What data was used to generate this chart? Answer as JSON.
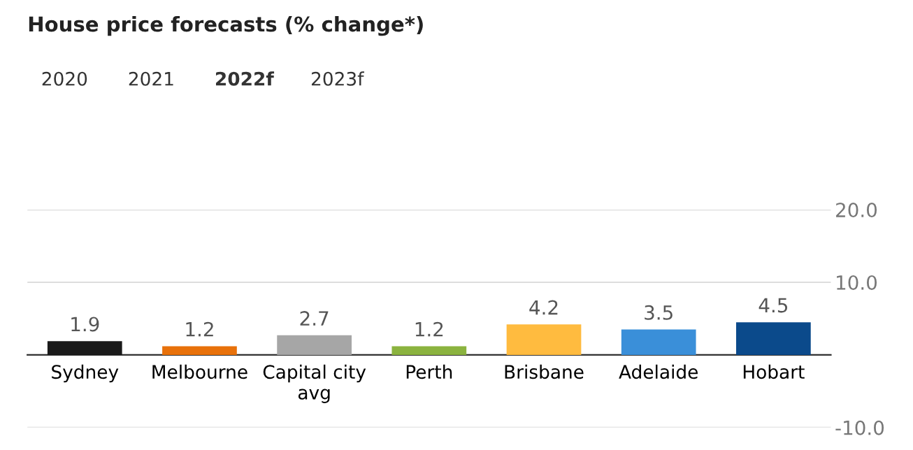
{
  "chart_data": {
    "type": "bar",
    "title": "House price forecasts (% change*)",
    "annotations": [
      "2020",
      "2021",
      "2022f",
      "2023f"
    ],
    "categories": [
      "Sydney",
      "Melbourne",
      "Capital city avg",
      "Perth",
      "Brisbane",
      "Adelaide",
      "Hobart"
    ],
    "values": [
      1.9,
      1.2,
      2.7,
      1.2,
      4.2,
      3.5,
      4.5
    ],
    "colors": [
      "#1a1a1a",
      "#e8710a",
      "#a6a6a6",
      "#8bb33f",
      "#ffbb3f",
      "#3a8fd9",
      "#0b4a8b"
    ],
    "ylim": [
      -10,
      20
    ],
    "yticks": [
      {
        "value": 20,
        "label": "20.0"
      },
      {
        "value": 10,
        "label": "10.0"
      },
      {
        "value": 0,
        "label": null
      },
      {
        "value": -10,
        "label": "-10.0"
      }
    ],
    "grid": "y",
    "data_labels": true
  }
}
